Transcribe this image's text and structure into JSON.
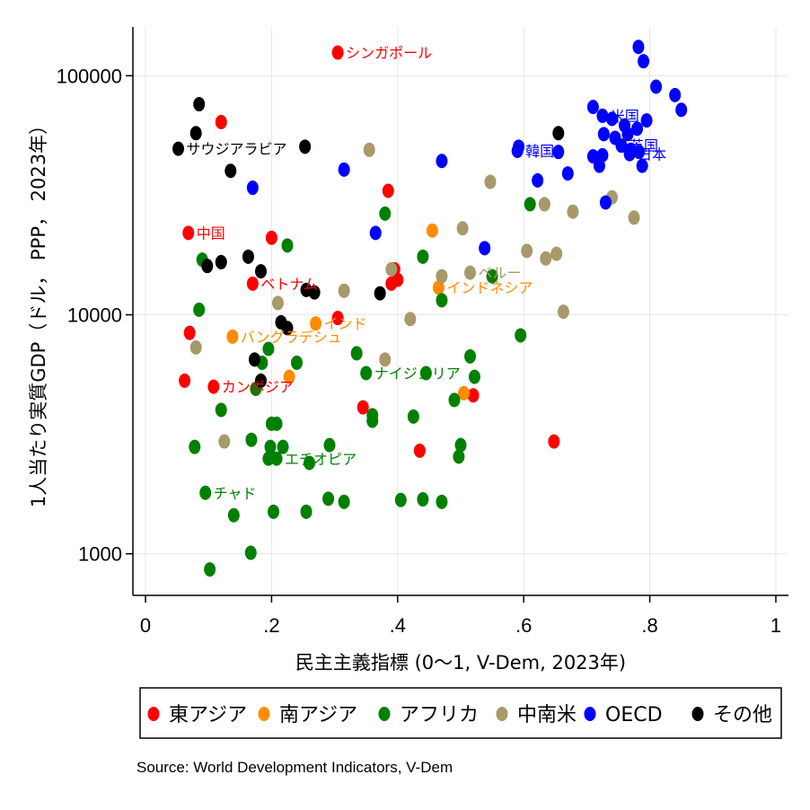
{
  "chart_data": {
    "type": "scatter",
    "xlabel": "民主主義指標 (0〜1, V-Dem, 2023年)",
    "ylabel": "1人当たり実質GDP（ドル， PPP， 2023年）",
    "x_ticks": [
      {
        "value": 0,
        "label": "0"
      },
      {
        "value": 0.2,
        "label": ".2"
      },
      {
        "value": 0.4,
        "label": ".4"
      },
      {
        "value": 0.6,
        "label": ".6"
      },
      {
        "value": 0.8,
        "label": ".8"
      },
      {
        "value": 1,
        "label": "1"
      }
    ],
    "y_ticks": [
      {
        "value": 1000,
        "label": "1000"
      },
      {
        "value": 10000,
        "label": "10000"
      },
      {
        "value": 100000,
        "label": "100000"
      }
    ],
    "xlim": [
      -0.02,
      1.02
    ],
    "ylim": [
      670,
      160000
    ],
    "y_scale": "log",
    "grid": true,
    "legend_position": "bottom",
    "source": "Source: World Development Indicators, V-Dem",
    "series": [
      {
        "name": "東アジア",
        "color": "#ff0000",
        "points": [
          {
            "x": 0.305,
            "y": 125000,
            "label": "シンガポール"
          },
          {
            "x": 0.12,
            "y": 64000
          },
          {
            "x": 0.385,
            "y": 33000
          },
          {
            "x": 0.068,
            "y": 22000,
            "label": "中国"
          },
          {
            "x": 0.2,
            "y": 21000
          },
          {
            "x": 0.17,
            "y": 13500,
            "label": "ベトナム"
          },
          {
            "x": 0.39,
            "y": 13500
          },
          {
            "x": 0.395,
            "y": 15500
          },
          {
            "x": 0.4,
            "y": 14000
          },
          {
            "x": 0.305,
            "y": 9700
          },
          {
            "x": 0.07,
            "y": 8400
          },
          {
            "x": 0.062,
            "y": 5300
          },
          {
            "x": 0.108,
            "y": 5000,
            "label": "カンボジア"
          },
          {
            "x": 0.345,
            "y": 4100
          },
          {
            "x": 0.52,
            "y": 4600
          },
          {
            "x": 0.435,
            "y": 2700
          },
          {
            "x": 0.648,
            "y": 2950
          }
        ]
      },
      {
        "name": "南アジア",
        "color": "#ff8c00",
        "points": [
          {
            "x": 0.455,
            "y": 22500
          },
          {
            "x": 0.465,
            "y": 13000,
            "label": "インドネシア"
          },
          {
            "x": 0.27,
            "y": 9200,
            "label": "インド"
          },
          {
            "x": 0.138,
            "y": 8100,
            "label": "バングラデシュ"
          },
          {
            "x": 0.228,
            "y": 5500
          },
          {
            "x": 0.505,
            "y": 4700
          }
        ]
      },
      {
        "name": "アフリカ",
        "color": "#008000",
        "points": [
          {
            "x": 0.38,
            "y": 26500
          },
          {
            "x": 0.225,
            "y": 19500
          },
          {
            "x": 0.09,
            "y": 17000
          },
          {
            "x": 0.44,
            "y": 17500
          },
          {
            "x": 0.61,
            "y": 29000
          },
          {
            "x": 0.55,
            "y": 14500
          },
          {
            "x": 0.47,
            "y": 11500
          },
          {
            "x": 0.085,
            "y": 10500
          },
          {
            "x": 0.595,
            "y": 8200
          },
          {
            "x": 0.195,
            "y": 7200
          },
          {
            "x": 0.185,
            "y": 6300
          },
          {
            "x": 0.24,
            "y": 6300
          },
          {
            "x": 0.175,
            "y": 4900
          },
          {
            "x": 0.335,
            "y": 6900
          },
          {
            "x": 0.35,
            "y": 5700,
            "label": "ナイジェリア"
          },
          {
            "x": 0.445,
            "y": 5700
          },
          {
            "x": 0.515,
            "y": 6700
          },
          {
            "x": 0.522,
            "y": 5500
          },
          {
            "x": 0.49,
            "y": 4400
          },
          {
            "x": 0.12,
            "y": 4000
          },
          {
            "x": 0.2,
            "y": 3500
          },
          {
            "x": 0.208,
            "y": 3500
          },
          {
            "x": 0.36,
            "y": 3800
          },
          {
            "x": 0.36,
            "y": 3600
          },
          {
            "x": 0.425,
            "y": 3750
          },
          {
            "x": 0.078,
            "y": 2800
          },
          {
            "x": 0.168,
            "y": 3000
          },
          {
            "x": 0.198,
            "y": 2800
          },
          {
            "x": 0.218,
            "y": 2800
          },
          {
            "x": 0.292,
            "y": 2850
          },
          {
            "x": 0.195,
            "y": 2500
          },
          {
            "x": 0.208,
            "y": 2500,
            "label": "エチオピア"
          },
          {
            "x": 0.26,
            "y": 2400
          },
          {
            "x": 0.5,
            "y": 2850
          },
          {
            "x": 0.497,
            "y": 2550
          },
          {
            "x": 0.095,
            "y": 1800,
            "label": "チャド"
          },
          {
            "x": 0.14,
            "y": 1450
          },
          {
            "x": 0.203,
            "y": 1500
          },
          {
            "x": 0.255,
            "y": 1500
          },
          {
            "x": 0.29,
            "y": 1700
          },
          {
            "x": 0.315,
            "y": 1650
          },
          {
            "x": 0.405,
            "y": 1680
          },
          {
            "x": 0.44,
            "y": 1690
          },
          {
            "x": 0.47,
            "y": 1650
          },
          {
            "x": 0.167,
            "y": 1010
          },
          {
            "x": 0.102,
            "y": 860
          }
        ]
      },
      {
        "name": "中南米",
        "color": "#a8996b",
        "points": [
          {
            "x": 0.355,
            "y": 49000
          },
          {
            "x": 0.547,
            "y": 36000
          },
          {
            "x": 0.74,
            "y": 31000
          },
          {
            "x": 0.633,
            "y": 29000
          },
          {
            "x": 0.678,
            "y": 27000
          },
          {
            "x": 0.775,
            "y": 25500
          },
          {
            "x": 0.503,
            "y": 23000
          },
          {
            "x": 0.605,
            "y": 18500
          },
          {
            "x": 0.635,
            "y": 17200
          },
          {
            "x": 0.652,
            "y": 18000
          },
          {
            "x": 0.39,
            "y": 15500
          },
          {
            "x": 0.47,
            "y": 14500
          },
          {
            "x": 0.515,
            "y": 15000,
            "label": "ペルー"
          },
          {
            "x": 0.315,
            "y": 12600
          },
          {
            "x": 0.21,
            "y": 11200
          },
          {
            "x": 0.42,
            "y": 9600
          },
          {
            "x": 0.663,
            "y": 10300
          },
          {
            "x": 0.08,
            "y": 7300
          },
          {
            "x": 0.38,
            "y": 6500
          },
          {
            "x": 0.125,
            "y": 2950
          }
        ]
      },
      {
        "name": "OECD",
        "color": "#0000ff",
        "points": [
          {
            "x": 0.782,
            "y": 132000
          },
          {
            "x": 0.79,
            "y": 115000
          },
          {
            "x": 0.81,
            "y": 90000
          },
          {
            "x": 0.84,
            "y": 83000
          },
          {
            "x": 0.85,
            "y": 72000
          },
          {
            "x": 0.71,
            "y": 74000
          },
          {
            "x": 0.725,
            "y": 68000,
            "label": "米国"
          },
          {
            "x": 0.74,
            "y": 66000
          },
          {
            "x": 0.76,
            "y": 62000
          },
          {
            "x": 0.795,
            "y": 65000
          },
          {
            "x": 0.727,
            "y": 57000
          },
          {
            "x": 0.745,
            "y": 55000
          },
          {
            "x": 0.765,
            "y": 57000
          },
          {
            "x": 0.78,
            "y": 60000
          },
          {
            "x": 0.755,
            "y": 51000,
            "label": "英国"
          },
          {
            "x": 0.77,
            "y": 49000
          },
          {
            "x": 0.71,
            "y": 46000
          },
          {
            "x": 0.725,
            "y": 46500
          },
          {
            "x": 0.768,
            "y": 47000,
            "label": "日本"
          },
          {
            "x": 0.783,
            "y": 48000
          },
          {
            "x": 0.72,
            "y": 42000
          },
          {
            "x": 0.788,
            "y": 42000
          },
          {
            "x": 0.59,
            "y": 48500,
            "label": "韓国"
          },
          {
            "x": 0.592,
            "y": 50500
          },
          {
            "x": 0.655,
            "y": 48000
          },
          {
            "x": 0.67,
            "y": 39000
          },
          {
            "x": 0.622,
            "y": 36500
          },
          {
            "x": 0.47,
            "y": 44000
          },
          {
            "x": 0.315,
            "y": 40500
          },
          {
            "x": 0.17,
            "y": 34000
          },
          {
            "x": 0.73,
            "y": 29500
          },
          {
            "x": 0.365,
            "y": 22000
          },
          {
            "x": 0.538,
            "y": 19000
          }
        ]
      },
      {
        "name": "その他",
        "color": "#000000",
        "points": [
          {
            "x": 0.085,
            "y": 76000
          },
          {
            "x": 0.08,
            "y": 57500
          },
          {
            "x": 0.655,
            "y": 57500
          },
          {
            "x": 0.052,
            "y": 49500,
            "label": "サウジアラビア"
          },
          {
            "x": 0.253,
            "y": 50500
          },
          {
            "x": 0.135,
            "y": 40000
          },
          {
            "x": 0.163,
            "y": 17500
          },
          {
            "x": 0.12,
            "y": 16600
          },
          {
            "x": 0.098,
            "y": 16000
          },
          {
            "x": 0.183,
            "y": 15200
          },
          {
            "x": 0.255,
            "y": 12700
          },
          {
            "x": 0.268,
            "y": 12400
          },
          {
            "x": 0.372,
            "y": 12300
          },
          {
            "x": 0.215,
            "y": 9300
          },
          {
            "x": 0.225,
            "y": 8800
          },
          {
            "x": 0.173,
            "y": 6500
          },
          {
            "x": 0.183,
            "y": 5300
          }
        ]
      }
    ]
  }
}
